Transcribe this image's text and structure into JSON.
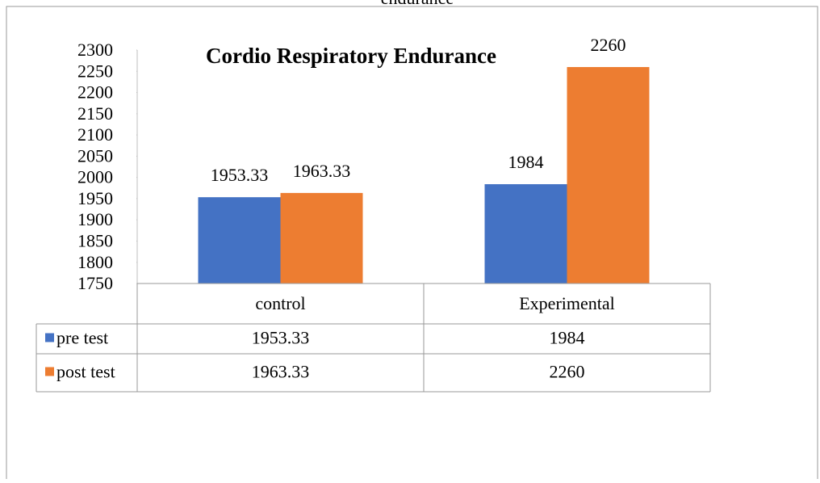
{
  "caption": "endurance",
  "chart_data": {
    "type": "bar",
    "title": "Cordio Respiratory Endurance",
    "categories": [
      "control",
      "Experimental"
    ],
    "series": [
      {
        "name": "pre test",
        "color": "#4472c4",
        "values": [
          1953.33,
          1984
        ]
      },
      {
        "name": "post test",
        "color": "#ed7d31",
        "values": [
          1963.33,
          2260
        ]
      }
    ],
    "ylim": [
      1750,
      2300
    ],
    "yticks": [
      1750,
      1800,
      1850,
      1900,
      1950,
      2000,
      2050,
      2100,
      2150,
      2200,
      2250,
      2300
    ],
    "grid": false,
    "data_table": true
  }
}
